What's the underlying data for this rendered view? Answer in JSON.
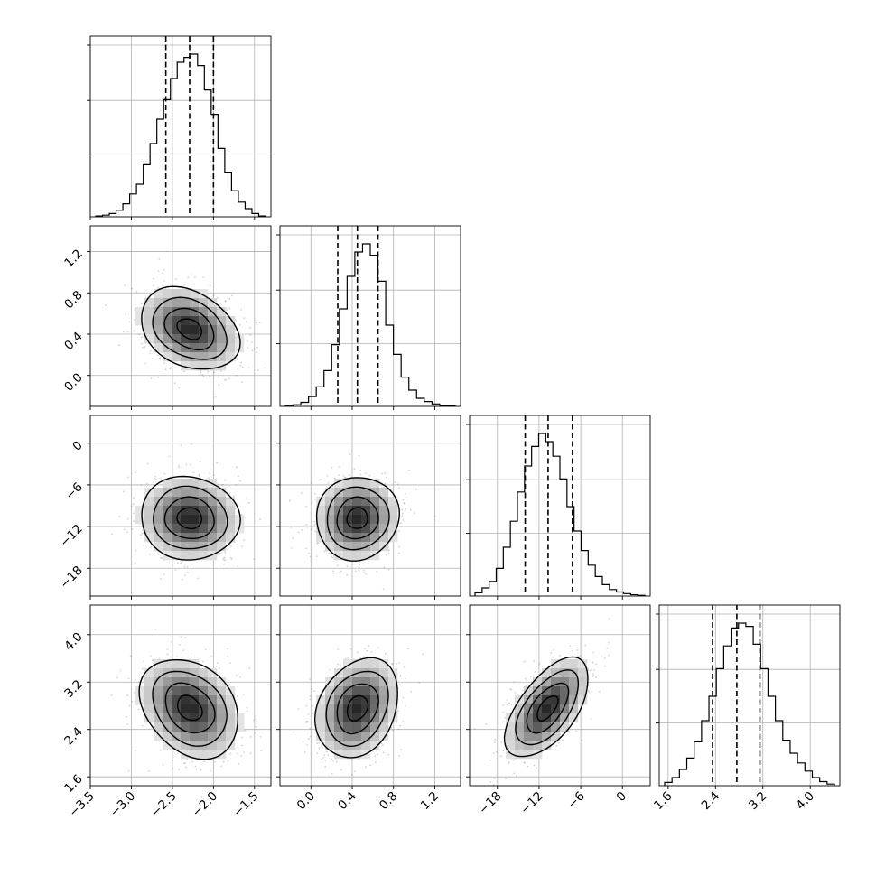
{
  "chart_data": {
    "type": "corner",
    "parameters": [
      {
        "range": [
          -3.5,
          -1.3
        ],
        "ticks": [
          -3.5,
          -3.0,
          -2.5,
          -2.0,
          -1.5
        ],
        "tick_labels": [
          "−3.5",
          "−3.0",
          "−2.5",
          "−2.0",
          "−1.5"
        ],
        "quantiles": [
          -2.58,
          -2.29,
          -2.0
        ]
      },
      {
        "range": [
          -0.3,
          1.45
        ],
        "ticks": [
          0.0,
          0.4,
          0.8,
          1.2
        ],
        "tick_labels": [
          "0.0",
          "0.4",
          "0.8",
          "1.2"
        ],
        "quantiles": [
          0.26,
          0.45,
          0.65
        ]
      },
      {
        "range": [
          -22,
          4
        ],
        "ticks": [
          -18,
          -12,
          -6,
          0
        ],
        "tick_labels": [
          "−18",
          "−12",
          "−6",
          "0"
        ],
        "quantiles": [
          -14.0,
          -10.7,
          -7.2
        ]
      },
      {
        "range": [
          1.45,
          4.5
        ],
        "ticks": [
          1.6,
          2.4,
          3.2,
          4.0
        ],
        "tick_labels": [
          "1.6",
          "2.4",
          "3.2",
          "4.0"
        ],
        "quantiles": [
          2.35,
          2.76,
          3.15
        ]
      }
    ],
    "histograms": [
      [
        0.005,
        0.01,
        0.02,
        0.04,
        0.08,
        0.14,
        0.2,
        0.32,
        0.45,
        0.6,
        0.72,
        0.85,
        0.95,
        0.98,
        1.0,
        0.93,
        0.78,
        0.63,
        0.42,
        0.27,
        0.16,
        0.09,
        0.05,
        0.02,
        0.005
      ],
      [
        0.005,
        0.01,
        0.025,
        0.06,
        0.12,
        0.22,
        0.38,
        0.6,
        0.8,
        0.95,
        1.0,
        0.93,
        0.77,
        0.5,
        0.32,
        0.18,
        0.1,
        0.05,
        0.03,
        0.015,
        0.005,
        0.002
      ],
      [
        0.02,
        0.05,
        0.09,
        0.17,
        0.3,
        0.46,
        0.64,
        0.8,
        0.92,
        1.0,
        0.95,
        0.86,
        0.72,
        0.55,
        0.4,
        0.28,
        0.19,
        0.12,
        0.07,
        0.04,
        0.025,
        0.015,
        0.008,
        0.004
      ],
      [
        0.02,
        0.05,
        0.1,
        0.17,
        0.27,
        0.4,
        0.55,
        0.72,
        0.86,
        0.97,
        1.0,
        0.98,
        0.87,
        0.72,
        0.55,
        0.4,
        0.28,
        0.2,
        0.14,
        0.09,
        0.05,
        0.025,
        0.01
      ]
    ],
    "pairs": [
      {
        "x_param": 0,
        "y_param": 1,
        "mean": [
          -2.29,
          0.45
        ],
        "sd": [
          0.3,
          0.2
        ],
        "corr": -0.3
      },
      {
        "x_param": 0,
        "y_param": 2,
        "mean": [
          -2.29,
          -10.8
        ],
        "sd": [
          0.3,
          3.0
        ],
        "corr": -0.05
      },
      {
        "x_param": 1,
        "y_param": 2,
        "mean": [
          0.45,
          -10.8
        ],
        "sd": [
          0.2,
          3.0
        ],
        "corr": 0.05
      },
      {
        "x_param": 0,
        "y_param": 3,
        "mean": [
          -2.29,
          2.76
        ],
        "sd": [
          0.3,
          0.42
        ],
        "corr": -0.28
      },
      {
        "x_param": 1,
        "y_param": 3,
        "mean": [
          0.45,
          2.76
        ],
        "sd": [
          0.2,
          0.42
        ],
        "corr": 0.25
      },
      {
        "x_param": 2,
        "y_param": 3,
        "mean": [
          -10.8,
          2.76
        ],
        "sd": [
          3.0,
          0.42
        ],
        "corr": 0.6
      }
    ],
    "contour_levels_sigma": [
      0.5,
      1.0,
      1.5,
      2.0
    ],
    "grid": true,
    "colors": {
      "line": "#000000",
      "scatter": "#7f7f7f",
      "grid": "#b0b0b0",
      "background": "#ffffff"
    }
  }
}
